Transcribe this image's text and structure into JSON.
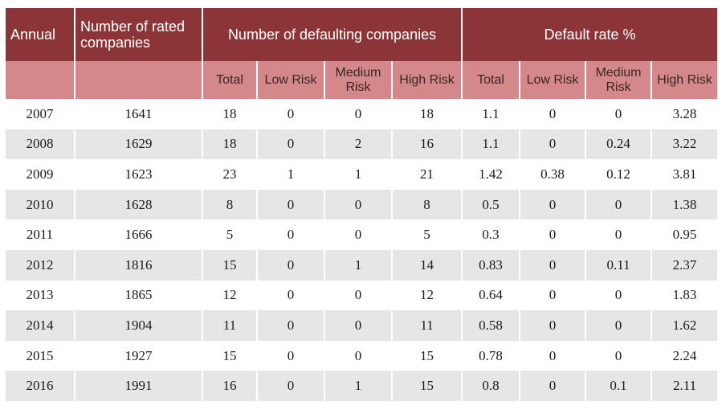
{
  "chart_data": {
    "type": "table",
    "header_top": {
      "annual": "Annual",
      "rated": "Number of rated companies",
      "defaulting": "Number of defaulting companies",
      "default_rate": "Default rate %"
    },
    "header_sub": [
      "Total",
      "Low Risk",
      "Medium Risk",
      "High Risk",
      "Total",
      "Low Risk",
      "Medium Risk",
      "High Risk"
    ],
    "rows": [
      [
        "2007",
        "1641",
        "18",
        "0",
        "0",
        "18",
        "1.1",
        "0",
        "0",
        "3.28"
      ],
      [
        "2008",
        "1629",
        "18",
        "0",
        "2",
        "16",
        "1.1",
        "0",
        "0.24",
        "3.22"
      ],
      [
        "2009",
        "1623",
        "23",
        "1",
        "1",
        "21",
        "1.42",
        "0.38",
        "0.12",
        "3.81"
      ],
      [
        "2010",
        "1628",
        "8",
        "0",
        "0",
        "8",
        "0.5",
        "0",
        "0",
        "1.38"
      ],
      [
        "2011",
        "1666",
        "5",
        "0",
        "0",
        "5",
        "0.3",
        "0",
        "0",
        "0.95"
      ],
      [
        "2012",
        "1816",
        "15",
        "0",
        "1",
        "14",
        "0.83",
        "0",
        "0.11",
        "2.37"
      ],
      [
        "2013",
        "1865",
        "12",
        "0",
        "0",
        "12",
        "0.64",
        "0",
        "0",
        "1.83"
      ],
      [
        "2014",
        "1904",
        "11",
        "0",
        "0",
        "11",
        "0.58",
        "0",
        "0",
        "1.62"
      ],
      [
        "2015",
        "1927",
        "15",
        "0",
        "0",
        "15",
        "0.78",
        "0",
        "0",
        "2.24"
      ],
      [
        "2016",
        "1991",
        "16",
        "0",
        "1",
        "15",
        "0.8",
        "0",
        "0.1",
        "2.11"
      ]
    ],
    "colors": {
      "header_dark": "#8b3538",
      "header_light": "#d4888a",
      "row_stripe": "#e6e6e6"
    }
  }
}
